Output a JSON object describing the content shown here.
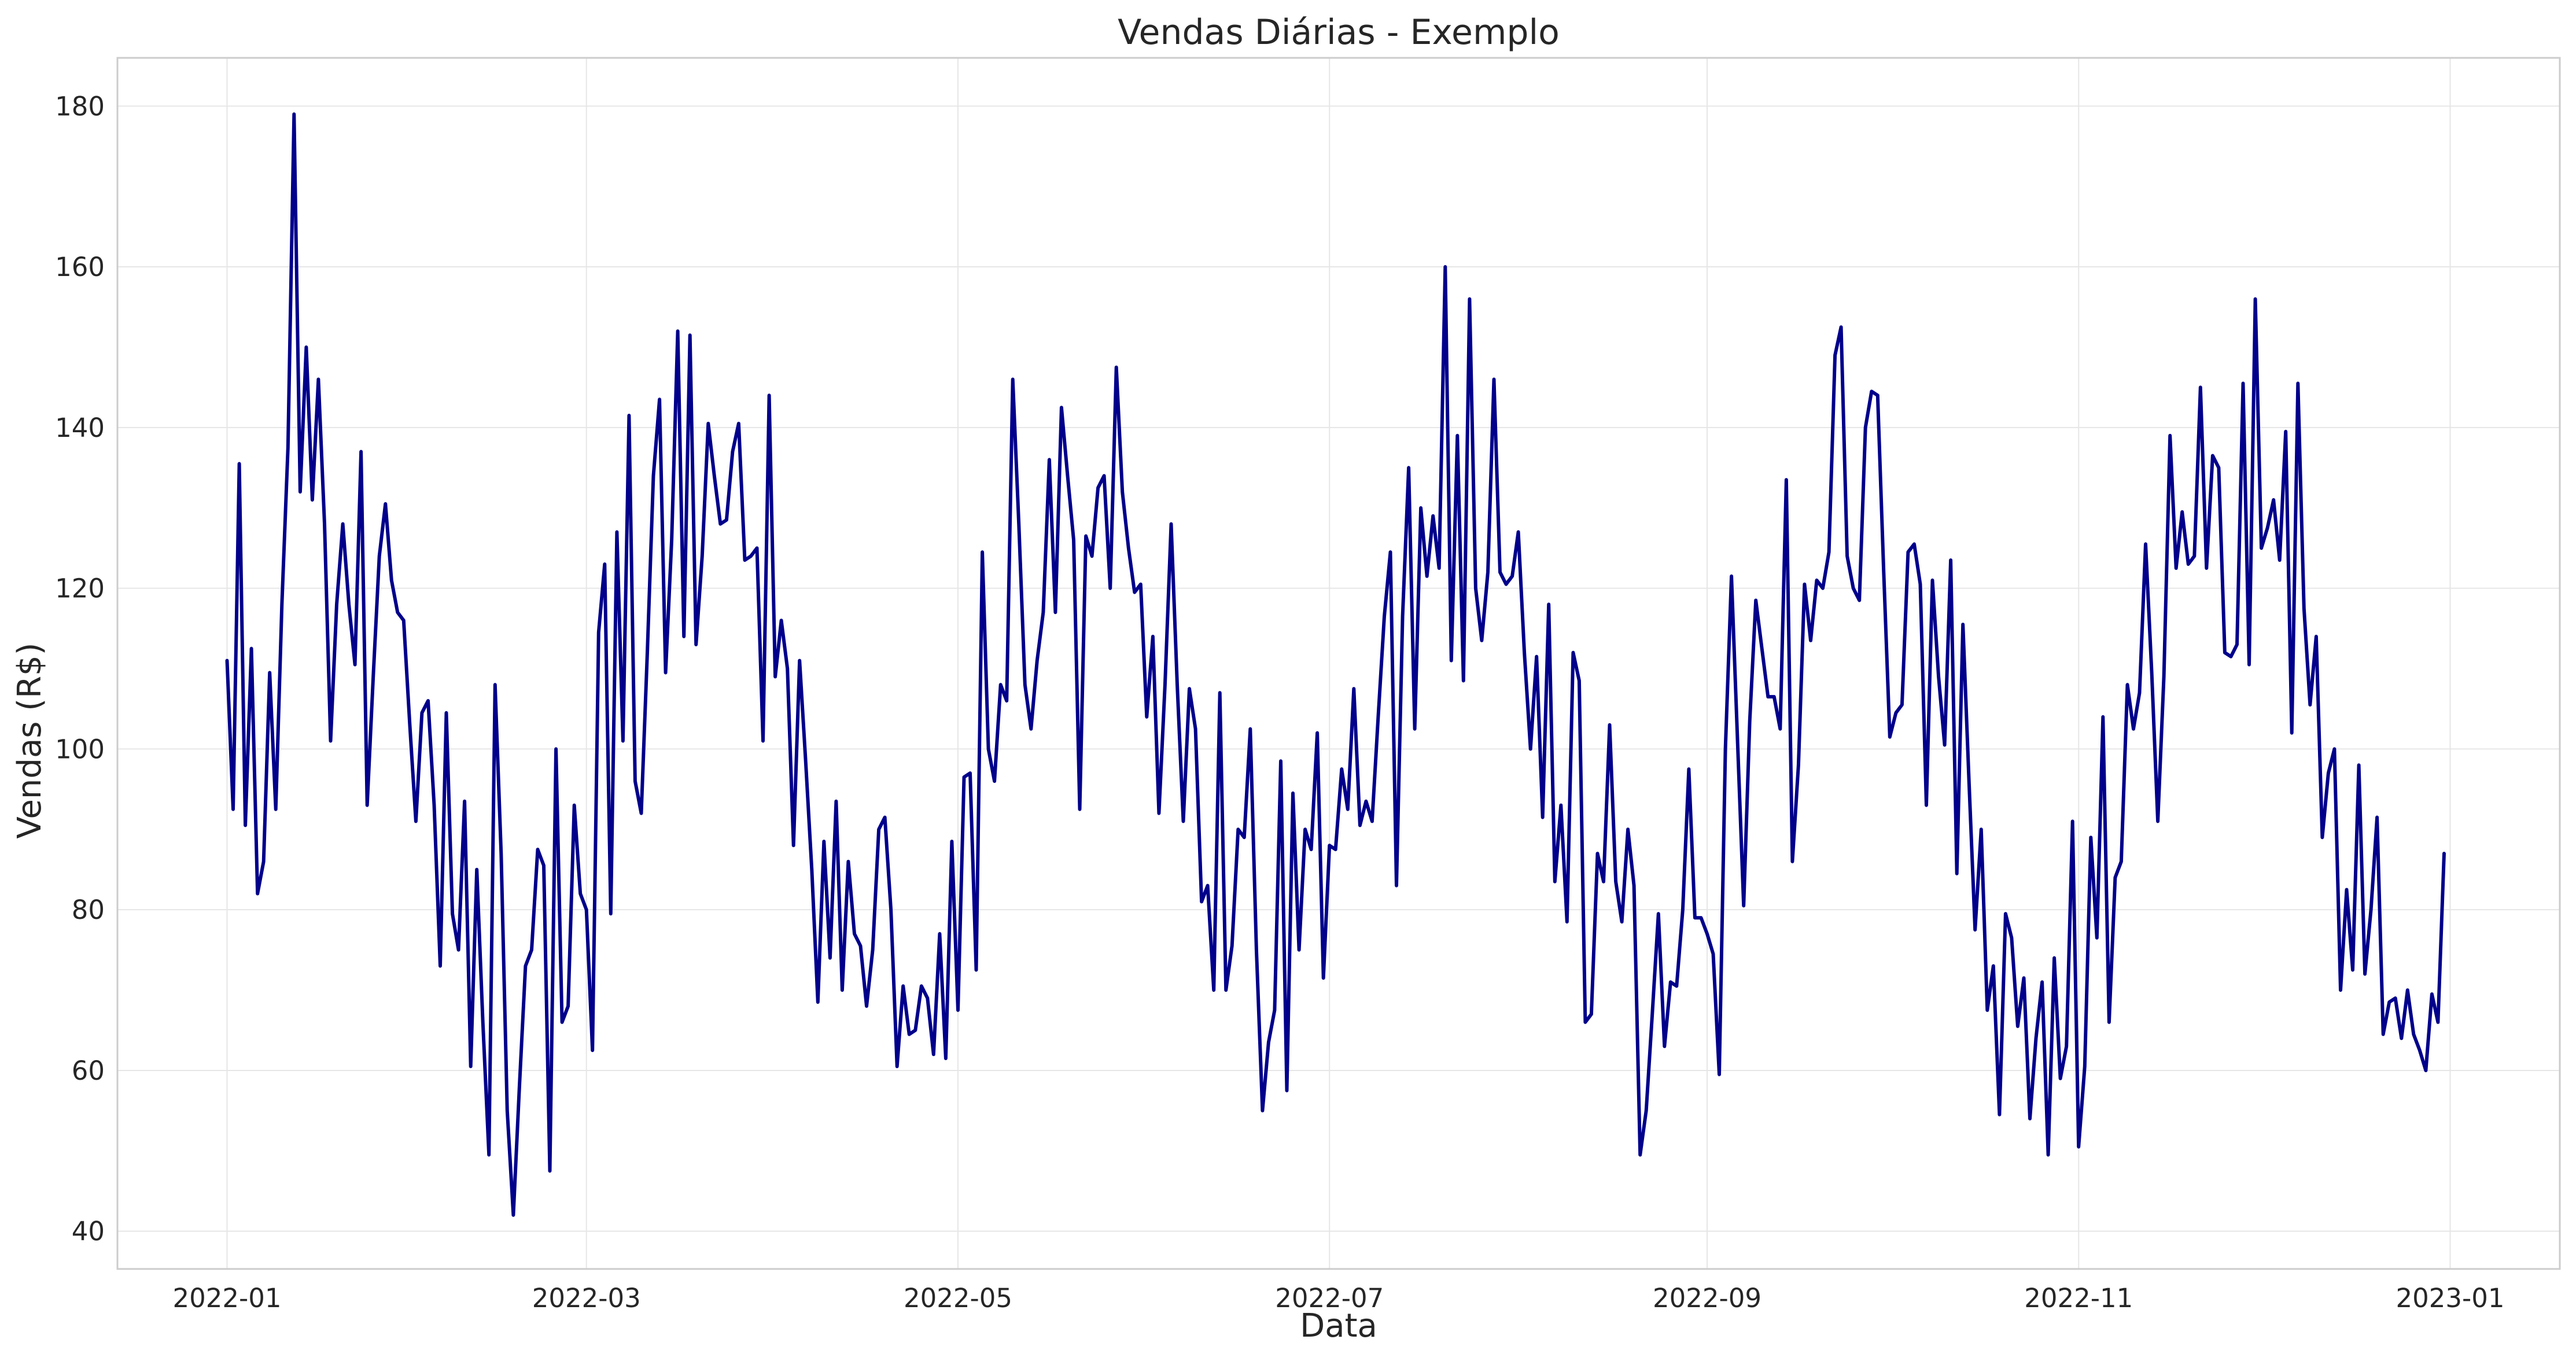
{
  "chart_data": {
    "type": "line",
    "title": "Vendas Diárias - Exemplo",
    "xlabel": "Data",
    "ylabel": "Vendas (R$)",
    "x_type": "date",
    "xlim": [
      "2021-12-14",
      "2023-01-19"
    ],
    "ylim": [
      35.3,
      186.0
    ],
    "x_ticks": [
      "2022-01",
      "2022-03",
      "2022-05",
      "2022-07",
      "2022-09",
      "2022-11",
      "2023-01"
    ],
    "x_tick_dates": [
      "2022-01-01",
      "2022-03-01",
      "2022-05-01",
      "2022-07-01",
      "2022-09-01",
      "2022-11-01",
      "2023-01-01"
    ],
    "y_ticks": [
      40,
      60,
      80,
      100,
      120,
      140,
      160,
      180
    ],
    "grid": true,
    "legend": "none",
    "colors": {
      "line": "#00008b",
      "grid": "#e6e6e6",
      "frame": "#cccccc"
    },
    "series": [
      {
        "x_start": "2022-01-01",
        "x_step": "1 day",
        "values": [
          111,
          92.5,
          135.5,
          90.5,
          112.5,
          82,
          86,
          109.5,
          92.5,
          118,
          137.5,
          179,
          132,
          150,
          131,
          146,
          128,
          101,
          118,
          128,
          118,
          110.5,
          137,
          93,
          109,
          124,
          130.5,
          121,
          117,
          116,
          103,
          91,
          104.5,
          106,
          93,
          73,
          104.5,
          79.5,
          75,
          93.5,
          60.5,
          85,
          66,
          49.5,
          108,
          87,
          55,
          42,
          58,
          73,
          75,
          87.5,
          85.5,
          47.5,
          100,
          66,
          68,
          93,
          82,
          80,
          62.5,
          114.5,
          123,
          79.5,
          127,
          101,
          141.5,
          96,
          92,
          112,
          134,
          143.5,
          109.5,
          126,
          152,
          114,
          151.5,
          113,
          124,
          140.5,
          134,
          128,
          128.5,
          137,
          140.5,
          123.5,
          124,
          125,
          101,
          144,
          109,
          116,
          110,
          88,
          111,
          98.5,
          85,
          68.5,
          88.5,
          74,
          93.5,
          70,
          86,
          77,
          75.5,
          68,
          75,
          90,
          91.5,
          80,
          60.5,
          70.5,
          64.5,
          65,
          70.5,
          69,
          62,
          77,
          61.5,
          88.5,
          67.5,
          96.5,
          97,
          72.5,
          124.5,
          100,
          96,
          108,
          106,
          146,
          128,
          108,
          102.5,
          111,
          117,
          136,
          117,
          142.5,
          134,
          126,
          92.5,
          126.5,
          124,
          132.5,
          134,
          120,
          147.5,
          132,
          125,
          119.5,
          120.5,
          104,
          114,
          92,
          108,
          128,
          108,
          91,
          107.5,
          102.5,
          81,
          83,
          70,
          107,
          70,
          75.5,
          90,
          89,
          102.5,
          75,
          55,
          63.5,
          67.5,
          98.5,
          57.5,
          94.5,
          75,
          90,
          87.5,
          102,
          71.5,
          88,
          87.5,
          97.5,
          92.5,
          107.5,
          90.5,
          93.5,
          91,
          104,
          116.5,
          124.5,
          83,
          116.5,
          135,
          102.5,
          130,
          121.5,
          129,
          122.5,
          160,
          111,
          139,
          108.5,
          156,
          120,
          113.5,
          122,
          146,
          122,
          120.5,
          121.5,
          127,
          112,
          100,
          111.5,
          91.5,
          118,
          83.5,
          93,
          78.5,
          112,
          108.5,
          66,
          67,
          87,
          83.5,
          103,
          83.5,
          78.5,
          90,
          83,
          49.5,
          55,
          67,
          79.5,
          63,
          71,
          70.5,
          80,
          97.5,
          79,
          79,
          77,
          74.5,
          59.5,
          100,
          121.5,
          101,
          80.5,
          103.5,
          118.5,
          112.5,
          106.5,
          106.5,
          102.5,
          133.5,
          86,
          98,
          120.5,
          113.5,
          121,
          120,
          124.5,
          149,
          152.5,
          124,
          120,
          118.5,
          140,
          144.5,
          144,
          122,
          101.5,
          104.5,
          105.5,
          124.5,
          125.5,
          120.5,
          93,
          121,
          109,
          100.5,
          123.5,
          84.5,
          115.5,
          96,
          77.5,
          90,
          67.5,
          73,
          54.5,
          79.5,
          76.5,
          65.5,
          71.5,
          54,
          64,
          71,
          49.5,
          74,
          59,
          63,
          91,
          50.5,
          60.5,
          89,
          76.5,
          104,
          66,
          84,
          86,
          108,
          102.5,
          107,
          125.5,
          109.5,
          91,
          109,
          139,
          122.5,
          129.5,
          123,
          124,
          145,
          122.5,
          136.5,
          135,
          112,
          111.5,
          113,
          145.5,
          110.5,
          156,
          125,
          127.5,
          131,
          123.5,
          139.5,
          102,
          145.5,
          117.5,
          105.5,
          114,
          89,
          97,
          100,
          70,
          82.5,
          72.5,
          98,
          72,
          80,
          91.5,
          64.5,
          68.5,
          69,
          64,
          70,
          64.5,
          62.5,
          60,
          69.5,
          66,
          87
        ]
      }
    ]
  }
}
